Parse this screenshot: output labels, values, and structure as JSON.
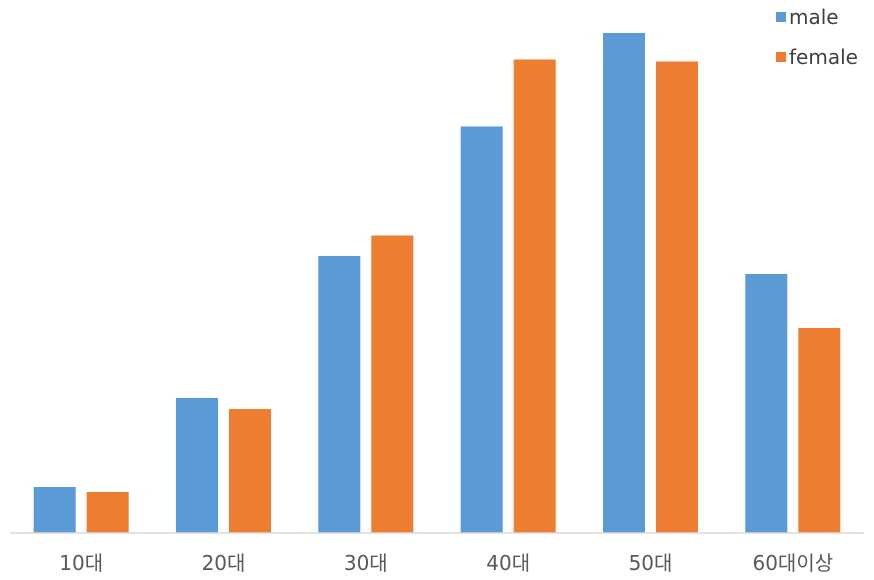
{
  "chart_data": {
    "type": "bar",
    "title": "",
    "xlabel": "",
    "ylabel": "",
    "categories": [
      "10대",
      "20대",
      "30대",
      "40대",
      "50대",
      "60대이상"
    ],
    "series": [
      {
        "name": "male",
        "color": "#5B9BD5",
        "values": [
          9.2,
          27.0,
          55.4,
          81.3,
          100.0,
          51.8
        ]
      },
      {
        "name": "female",
        "color": "#ED7D31",
        "values": [
          8.2,
          24.8,
          59.5,
          94.7,
          94.3,
          41.0
        ]
      }
    ],
    "ylim": [
      0,
      100
    ],
    "grid": false,
    "y_axis_visible": false,
    "legend_position": "top-right"
  }
}
